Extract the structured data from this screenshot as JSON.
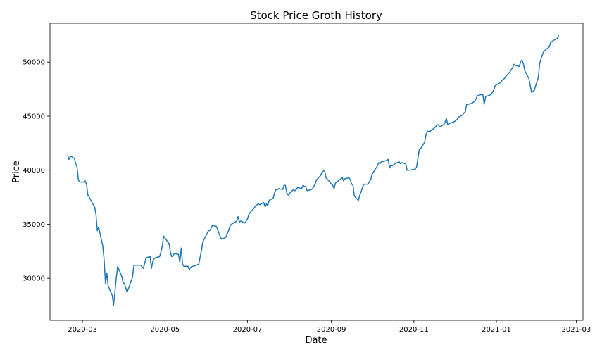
{
  "chart_data": {
    "type": "line",
    "title": "Stock Price Groth History",
    "xlabel": "Date",
    "ylabel": "Price",
    "grid": false,
    "xlim": [
      "2020-02-06",
      "2021-03-06"
    ],
    "ylim": [
      26100,
      53600
    ],
    "x_ticks": [
      "2020-03",
      "2020-05",
      "2020-07",
      "2020-09",
      "2020-11",
      "2021-01",
      "2021-03"
    ],
    "y_ticks": [
      "30000",
      "35000",
      "40000",
      "45000",
      "50000"
    ],
    "line_color": "#1f77b4",
    "series": [
      {
        "x": [
          "2020-02-19",
          "2020-02-20",
          "2020-02-21",
          "2020-02-24",
          "2020-02-25",
          "2020-02-26",
          "2020-02-27",
          "2020-02-28",
          "2020-03-02",
          "2020-03-03",
          "2020-03-04",
          "2020-03-05",
          "2020-03-06",
          "2020-03-09",
          "2020-03-10",
          "2020-03-11",
          "2020-03-12",
          "2020-03-13",
          "2020-03-16",
          "2020-03-17",
          "2020-03-18",
          "2020-03-19",
          "2020-03-20",
          "2020-03-23",
          "2020-03-24",
          "2020-03-25",
          "2020-03-26",
          "2020-03-27",
          "2020-03-30",
          "2020-03-31",
          "2020-04-01",
          "2020-04-03",
          "2020-04-07",
          "2020-04-08",
          "2020-04-09",
          "2020-04-13",
          "2020-04-15",
          "2020-04-16",
          "2020-04-17",
          "2020-04-20",
          "2020-04-21",
          "2020-04-22",
          "2020-04-23",
          "2020-04-24",
          "2020-04-27",
          "2020-04-28",
          "2020-04-29",
          "2020-04-30",
          "2020-05-04",
          "2020-05-05",
          "2020-05-06",
          "2020-05-07",
          "2020-05-08",
          "2020-05-11",
          "2020-05-12",
          "2020-05-13",
          "2020-05-14",
          "2020-05-15",
          "2020-05-18",
          "2020-05-19",
          "2020-05-20",
          "2020-05-21",
          "2020-05-22",
          "2020-05-26",
          "2020-05-27",
          "2020-05-28",
          "2020-05-29",
          "2020-06-01",
          "2020-06-02",
          "2020-06-03",
          "2020-06-04",
          "2020-06-05",
          "2020-06-08",
          "2020-06-09",
          "2020-06-10",
          "2020-06-11",
          "2020-06-12",
          "2020-06-15",
          "2020-06-16",
          "2020-06-17",
          "2020-06-18",
          "2020-06-19",
          "2020-06-22",
          "2020-06-23",
          "2020-06-24",
          "2020-06-25",
          "2020-06-26",
          "2020-06-29",
          "2020-06-30",
          "2020-07-01",
          "2020-07-02",
          "2020-07-03",
          "2020-07-06",
          "2020-07-07",
          "2020-07-08",
          "2020-07-09",
          "2020-07-10",
          "2020-07-13",
          "2020-07-14",
          "2020-07-15",
          "2020-07-16",
          "2020-07-17",
          "2020-07-20",
          "2020-07-21",
          "2020-07-22",
          "2020-07-23",
          "2020-07-24",
          "2020-07-27",
          "2020-07-28",
          "2020-07-29",
          "2020-07-30",
          "2020-07-31",
          "2020-08-03",
          "2020-08-04",
          "2020-08-05",
          "2020-08-06",
          "2020-08-07",
          "2020-08-10",
          "2020-08-11",
          "2020-08-12",
          "2020-08-13",
          "2020-08-14",
          "2020-08-17",
          "2020-08-18",
          "2020-08-19",
          "2020-08-20",
          "2020-08-21",
          "2020-08-24",
          "2020-08-25",
          "2020-08-26",
          "2020-08-27",
          "2020-08-28",
          "2020-08-31",
          "2020-09-01",
          "2020-09-02",
          "2020-09-03",
          "2020-09-04",
          "2020-09-07",
          "2020-09-08",
          "2020-09-09",
          "2020-09-10",
          "2020-09-11",
          "2020-09-14",
          "2020-09-15",
          "2020-09-16",
          "2020-09-17",
          "2020-09-18",
          "2020-09-21",
          "2020-09-22",
          "2020-09-23",
          "2020-09-24",
          "2020-09-25",
          "2020-09-28",
          "2020-09-29",
          "2020-09-30",
          "2020-10-01",
          "2020-10-05",
          "2020-10-06",
          "2020-10-07",
          "2020-10-08",
          "2020-10-09",
          "2020-10-12",
          "2020-10-13",
          "2020-10-14",
          "2020-10-15",
          "2020-10-16",
          "2020-10-19",
          "2020-10-20",
          "2020-10-21",
          "2020-10-22",
          "2020-10-23",
          "2020-10-26",
          "2020-10-27",
          "2020-10-28",
          "2020-10-29",
          "2020-11-02",
          "2020-11-03",
          "2020-11-04",
          "2020-11-05",
          "2020-11-06",
          "2020-11-09",
          "2020-11-10",
          "2020-11-11",
          "2020-11-12",
          "2020-11-13",
          "2020-11-17",
          "2020-11-18",
          "2020-11-19",
          "2020-11-20",
          "2020-11-23",
          "2020-11-24",
          "2020-11-25",
          "2020-11-26",
          "2020-11-27",
          "2020-12-01",
          "2020-12-02",
          "2020-12-03",
          "2020-12-04",
          "2020-12-07",
          "2020-12-08",
          "2020-12-09",
          "2020-12-10",
          "2020-12-11",
          "2020-12-14",
          "2020-12-15",
          "2020-12-16",
          "2020-12-17",
          "2020-12-18",
          "2020-12-21",
          "2020-12-22",
          "2020-12-23",
          "2020-12-24",
          "2020-12-28",
          "2020-12-29",
          "2020-12-30",
          "2020-12-31",
          "2021-01-01",
          "2021-01-04",
          "2021-01-05",
          "2021-01-06",
          "2021-01-07",
          "2021-01-08",
          "2021-01-11",
          "2021-01-12",
          "2021-01-13",
          "2021-01-14",
          "2021-01-15",
          "2021-01-18",
          "2021-01-19",
          "2021-01-20",
          "2021-01-21",
          "2021-01-22",
          "2021-01-25",
          "2021-01-27",
          "2021-01-28",
          "2021-01-29",
          "2021-02-01",
          "2021-02-02",
          "2021-02-03",
          "2021-02-04",
          "2021-02-05",
          "2021-02-08",
          "2021-02-09",
          "2021-02-10",
          "2021-02-11",
          "2021-02-12",
          "2021-02-15",
          "2021-02-16"
        ],
        "values": [
          41400,
          41000,
          41300,
          41100,
          40600,
          40300,
          39100,
          38900,
          38900,
          39000,
          38700,
          37700,
          37500,
          36800,
          36600,
          35900,
          34400,
          34700,
          33000,
          31700,
          29500,
          30500,
          29300,
          28400,
          27500,
          28700,
          30000,
          31100,
          30200,
          29600,
          29500,
          28700,
          30100,
          31200,
          31200,
          31200,
          30900,
          31400,
          31900,
          32000,
          30900,
          31600,
          31800,
          31900,
          32000,
          32400,
          33000,
          33900,
          33200,
          32400,
          32000,
          32100,
          32300,
          32200,
          31500,
          32800,
          31300,
          31100,
          31100,
          30800,
          31000,
          31100,
          31100,
          31300,
          32000,
          32600,
          33400,
          34100,
          34400,
          34400,
          34600,
          34900,
          34800,
          34500,
          34100,
          33800,
          33600,
          33800,
          34100,
          34400,
          34800,
          35000,
          35200,
          35300,
          35700,
          35200,
          35300,
          35100,
          35300,
          35500,
          35900,
          36100,
          36500,
          36700,
          36800,
          36900,
          36800,
          37000,
          36600,
          36900,
          36700,
          37200,
          37400,
          37900,
          38200,
          38200,
          38300,
          38200,
          38600,
          38600,
          37900,
          37700,
          38100,
          38200,
          38100,
          38200,
          38400,
          38300,
          38600,
          38500,
          38500,
          38100,
          38200,
          38300,
          38500,
          38700,
          39100,
          39500,
          39800,
          39900,
          40000,
          39300,
          38900,
          38700,
          38600,
          38300,
          38800,
          39100,
          39200,
          39300,
          39000,
          39200,
          39300,
          39100,
          38700,
          38600,
          37600,
          37200,
          37700,
          38000,
          38400,
          38700,
          38700,
          38900,
          39100,
          39600,
          40400,
          40700,
          40600,
          40800,
          40800,
          40900,
          41000,
          40200,
          40500,
          40400,
          40700,
          40700,
          40800,
          40600,
          40700,
          40600,
          40000,
          40000,
          40000,
          40100,
          40300,
          41100,
          41900,
          42000,
          42600,
          43300,
          43600,
          43600,
          43600,
          44000,
          44200,
          44200,
          44000,
          44200,
          44400,
          44800,
          44200,
          44300,
          44500,
          44600,
          44700,
          44900,
          45100,
          45300,
          45400,
          46100,
          46100,
          46200,
          46300,
          46400,
          46600,
          46900,
          47000,
          47000,
          46100,
          46800,
          47000,
          47200,
          47400,
          47800,
          47900,
          48100,
          48300,
          48400,
          48500,
          48700,
          49100,
          49300,
          49500,
          49800,
          49700,
          49600,
          50100,
          50200,
          49800,
          49200,
          48500,
          47200,
          47300,
          47400,
          48600,
          49900,
          50300,
          50700,
          51000,
          51300,
          51400,
          51800,
          51900,
          52000,
          52200,
          52500
        ]
      }
    ]
  }
}
